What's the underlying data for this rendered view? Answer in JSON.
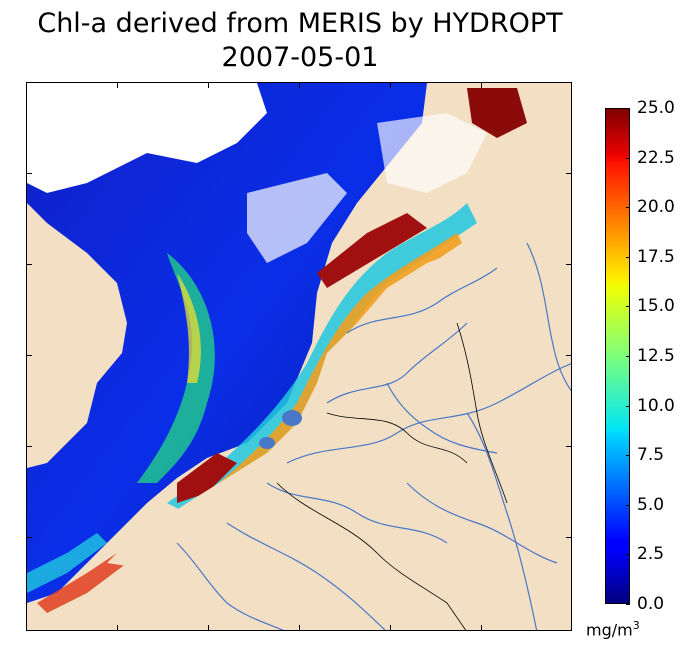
{
  "title_line1": "Chl-a derived from MERIS by HYDROPT",
  "title_line2": "2007-05-01",
  "colorbar": {
    "ticks": [
      "25.0",
      "22.5",
      "20.0",
      "17.5",
      "15.0",
      "12.5",
      "10.0",
      "7.5",
      "5.0",
      "2.5",
      "0.0"
    ],
    "units_base": "mg/m",
    "units_exp": "3",
    "min": 0.0,
    "max": 25.0
  },
  "colors": {
    "land": "#f2dfc4",
    "river": "#4a78c8",
    "cloud": "#ffffff"
  }
}
